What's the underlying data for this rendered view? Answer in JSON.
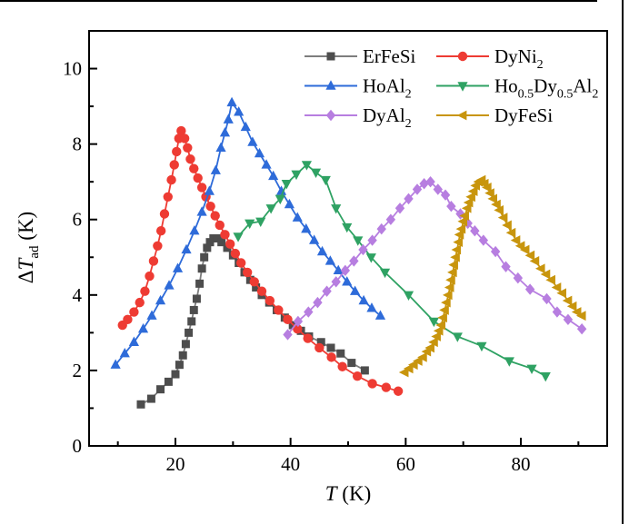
{
  "figure": {
    "background_color": "#ffffff",
    "border_color": "#000000",
    "has_top_border_line": true,
    "has_right_border_line": true
  },
  "chart_data": {
    "type": "line",
    "title": "",
    "xlabel": "T (K)",
    "ylabel": "dT_ad (K)",
    "xlabel_segments": [
      [
        "i",
        "T"
      ],
      [
        "n",
        " (K)"
      ]
    ],
    "ylabel_segments": [
      [
        "n",
        "Δ"
      ],
      [
        "i",
        "T"
      ],
      [
        "s",
        "ad"
      ],
      [
        "n",
        " (K)"
      ]
    ],
    "xlim": [
      5,
      95
    ],
    "ylim": [
      0,
      11
    ],
    "x_ticks_major": [
      20,
      40,
      60,
      80
    ],
    "x_ticks_minor": [
      10,
      30,
      50,
      70,
      90
    ],
    "y_ticks_major": [
      0,
      2,
      4,
      6,
      8,
      10
    ],
    "y_ticks_minor": [
      1,
      3,
      5,
      7,
      9
    ],
    "grid": false,
    "legend_position": "top-inside",
    "legend_columns": 2,
    "axis_color": "#000000",
    "series": [
      {
        "name": "ErFeSi",
        "label": "ErFeSi",
        "label_segments": [
          [
            "n",
            "ErFeSi"
          ]
        ],
        "marker": "square",
        "color": "#4d4d4d",
        "line_color": "#7d7d7d",
        "points": [
          [
            14,
            1.1
          ],
          [
            15.8,
            1.25
          ],
          [
            17.4,
            1.5
          ],
          [
            18.8,
            1.7
          ],
          [
            20,
            1.9
          ],
          [
            20.7,
            2.15
          ],
          [
            21.3,
            2.4
          ],
          [
            21.8,
            2.7
          ],
          [
            22.3,
            3.0
          ],
          [
            22.8,
            3.3
          ],
          [
            23.2,
            3.6
          ],
          [
            23.7,
            3.9
          ],
          [
            24.2,
            4.3
          ],
          [
            24.6,
            4.7
          ],
          [
            25,
            5.0
          ],
          [
            25.5,
            5.25
          ],
          [
            26,
            5.4
          ],
          [
            26.6,
            5.5
          ],
          [
            27.3,
            5.5
          ],
          [
            28,
            5.4
          ],
          [
            29,
            5.25
          ],
          [
            30,
            5.05
          ],
          [
            31,
            4.85
          ],
          [
            32,
            4.6
          ],
          [
            33,
            4.4
          ],
          [
            34,
            4.2
          ],
          [
            35,
            4.0
          ],
          [
            36.3,
            3.8
          ],
          [
            37.6,
            3.6
          ],
          [
            39,
            3.4
          ],
          [
            40.4,
            3.2
          ],
          [
            41.8,
            3.05
          ],
          [
            43.2,
            2.9
          ],
          [
            45.3,
            2.75
          ],
          [
            47,
            2.6
          ],
          [
            48.7,
            2.45
          ],
          [
            50.6,
            2.2
          ],
          [
            52.9,
            2.0
          ]
        ]
      },
      {
        "name": "DyNi2",
        "label": "DyNi2",
        "label_segments": [
          [
            "n",
            "DyNi"
          ],
          [
            "s",
            "2"
          ]
        ],
        "marker": "circle",
        "color": "#ee3b33",
        "line_color": "#ee3b33",
        "points": [
          [
            10.8,
            3.2
          ],
          [
            11.7,
            3.35
          ],
          [
            12.8,
            3.55
          ],
          [
            13.8,
            3.8
          ],
          [
            14.7,
            4.1
          ],
          [
            15.5,
            4.5
          ],
          [
            16.2,
            4.9
          ],
          [
            16.9,
            5.3
          ],
          [
            17.5,
            5.7
          ],
          [
            18.1,
            6.15
          ],
          [
            18.7,
            6.6
          ],
          [
            19.3,
            7.05
          ],
          [
            19.8,
            7.45
          ],
          [
            20.2,
            7.8
          ],
          [
            20.6,
            8.15
          ],
          [
            21,
            8.35
          ],
          [
            21.6,
            8.15
          ],
          [
            22.1,
            7.9
          ],
          [
            22.6,
            7.6
          ],
          [
            23.2,
            7.35
          ],
          [
            23.9,
            7.1
          ],
          [
            24.6,
            6.85
          ],
          [
            25.3,
            6.6
          ],
          [
            26.1,
            6.35
          ],
          [
            26.9,
            6.1
          ],
          [
            27.7,
            5.85
          ],
          [
            28.6,
            5.6
          ],
          [
            29.5,
            5.35
          ],
          [
            30.4,
            5.1
          ],
          [
            31.4,
            4.85
          ],
          [
            32.5,
            4.6
          ],
          [
            33.7,
            4.35
          ],
          [
            35,
            4.1
          ],
          [
            36.4,
            3.85
          ],
          [
            37.9,
            3.6
          ],
          [
            39.5,
            3.35
          ],
          [
            41.2,
            3.1
          ],
          [
            43,
            2.85
          ],
          [
            45,
            2.6
          ],
          [
            47.1,
            2.35
          ],
          [
            49,
            2.1
          ],
          [
            51.6,
            1.85
          ],
          [
            54.2,
            1.65
          ],
          [
            56.6,
            1.55
          ],
          [
            58.7,
            1.45
          ]
        ]
      },
      {
        "name": "HoAl2",
        "label": "HoAl2",
        "label_segments": [
          [
            "n",
            "HoAl"
          ],
          [
            "s",
            "2"
          ]
        ],
        "marker": "triangle-up",
        "color": "#2e6bd9",
        "line_color": "#2e6bd9",
        "points": [
          [
            9.6,
            2.15
          ],
          [
            11.2,
            2.45
          ],
          [
            12.8,
            2.75
          ],
          [
            14.4,
            3.1
          ],
          [
            15.9,
            3.45
          ],
          [
            17.4,
            3.85
          ],
          [
            18.9,
            4.25
          ],
          [
            20.4,
            4.7
          ],
          [
            21.9,
            5.2
          ],
          [
            23.3,
            5.7
          ],
          [
            24.6,
            6.2
          ],
          [
            25.9,
            6.75
          ],
          [
            27,
            7.3
          ],
          [
            27.9,
            7.9
          ],
          [
            28.6,
            8.3
          ],
          [
            29.2,
            8.65
          ],
          [
            29.8,
            9.1
          ],
          [
            31,
            8.85
          ],
          [
            32.2,
            8.45
          ],
          [
            33.4,
            8.05
          ],
          [
            34.6,
            7.75
          ],
          [
            35.8,
            7.45
          ],
          [
            37,
            7.15
          ],
          [
            38.4,
            6.75
          ],
          [
            39.8,
            6.4
          ],
          [
            41.2,
            6.05
          ],
          [
            42.7,
            5.75
          ],
          [
            44.1,
            5.45
          ],
          [
            45.5,
            5.15
          ],
          [
            46.9,
            4.9
          ],
          [
            48.3,
            4.65
          ],
          [
            49.8,
            4.35
          ],
          [
            51.2,
            4.1
          ],
          [
            52.7,
            3.85
          ],
          [
            54.1,
            3.65
          ],
          [
            55.6,
            3.45
          ]
        ]
      },
      {
        "name": "Ho0.5Dy0.5Al2",
        "label": "Ho0.5Dy0.5Al2",
        "label_segments": [
          [
            "n",
            "Ho"
          ],
          [
            "s",
            "0.5"
          ],
          [
            "n",
            "Dy"
          ],
          [
            "s",
            "0.5"
          ],
          [
            "n",
            "Al"
          ],
          [
            "s",
            "2"
          ]
        ],
        "marker": "triangle-down",
        "color": "#2fa263",
        "line_color": "#2fa263",
        "points": [
          [
            30.9,
            5.55
          ],
          [
            32.9,
            5.9
          ],
          [
            34.8,
            5.95
          ],
          [
            36.6,
            6.3
          ],
          [
            38.2,
            6.55
          ],
          [
            39.3,
            6.95
          ],
          [
            41,
            7.2
          ],
          [
            42.8,
            7.45
          ],
          [
            44.4,
            7.25
          ],
          [
            46.1,
            7.05
          ],
          [
            47.9,
            6.3
          ],
          [
            49.8,
            5.8
          ],
          [
            51.7,
            5.45
          ],
          [
            54,
            5.0
          ],
          [
            56.4,
            4.6
          ],
          [
            60.5,
            4.0
          ],
          [
            64.9,
            3.3
          ],
          [
            69,
            2.9
          ],
          [
            73.2,
            2.65
          ],
          [
            78,
            2.25
          ],
          [
            81.9,
            2.05
          ],
          [
            84.3,
            1.85
          ]
        ]
      },
      {
        "name": "DyAl2",
        "label": "DyAl2",
        "label_segments": [
          [
            "n",
            "DyAl"
          ],
          [
            "s",
            "2"
          ]
        ],
        "marker": "diamond",
        "color": "#b77ee0",
        "line_color": "#b77ee0",
        "points": [
          [
            39.5,
            2.95
          ],
          [
            41.3,
            3.3
          ],
          [
            43.1,
            3.55
          ],
          [
            44.7,
            3.8
          ],
          [
            46.3,
            4.1
          ],
          [
            47.9,
            4.35
          ],
          [
            49.5,
            4.65
          ],
          [
            51,
            4.9
          ],
          [
            52.6,
            5.2
          ],
          [
            54.2,
            5.45
          ],
          [
            55.8,
            5.75
          ],
          [
            57.4,
            6.0
          ],
          [
            59,
            6.3
          ],
          [
            60.5,
            6.55
          ],
          [
            62,
            6.8
          ],
          [
            63.2,
            6.95
          ],
          [
            64.3,
            7.0
          ],
          [
            65.6,
            6.8
          ],
          [
            66.9,
            6.65
          ],
          [
            67.9,
            6.35
          ],
          [
            69.5,
            6.15
          ],
          [
            70.8,
            5.9
          ],
          [
            72,
            5.7
          ],
          [
            73.5,
            5.45
          ],
          [
            75.6,
            5.15
          ],
          [
            77.4,
            4.75
          ],
          [
            79.5,
            4.45
          ],
          [
            81.6,
            4.15
          ],
          [
            84.5,
            3.9
          ],
          [
            86.3,
            3.55
          ],
          [
            88.2,
            3.35
          ],
          [
            90.6,
            3.1
          ]
        ]
      },
      {
        "name": "DyFeSi",
        "label": "DyFeSi",
        "label_segments": [
          [
            "n",
            "DyFeSi"
          ]
        ],
        "marker": "triangle-left",
        "color": "#c8950d",
        "line_color": "#c8950d",
        "points": [
          [
            59.8,
            1.95
          ],
          [
            60.6,
            2.05
          ],
          [
            61.4,
            2.15
          ],
          [
            62.2,
            2.25
          ],
          [
            63,
            2.35
          ],
          [
            63.7,
            2.5
          ],
          [
            64.3,
            2.6
          ],
          [
            64.9,
            2.75
          ],
          [
            65.4,
            2.9
          ],
          [
            65.8,
            3.05
          ],
          [
            66.2,
            3.2
          ],
          [
            66.5,
            3.4
          ],
          [
            66.8,
            3.6
          ],
          [
            67.1,
            3.8
          ],
          [
            67.4,
            4.0
          ],
          [
            67.7,
            4.2
          ],
          [
            67.9,
            4.4
          ],
          [
            68.2,
            4.6
          ],
          [
            68.4,
            4.8
          ],
          [
            68.7,
            5.0
          ],
          [
            68.9,
            5.2
          ],
          [
            69.2,
            5.4
          ],
          [
            69.4,
            5.6
          ],
          [
            69.7,
            5.75
          ],
          [
            70,
            5.95
          ],
          [
            70.3,
            6.1
          ],
          [
            70.7,
            6.3
          ],
          [
            71,
            6.45
          ],
          [
            71.4,
            6.6
          ],
          [
            71.8,
            6.75
          ],
          [
            72.2,
            6.9
          ],
          [
            72.7,
            7.0
          ],
          [
            73.2,
            7.05
          ],
          [
            73.7,
            6.95
          ],
          [
            74.2,
            6.85
          ],
          [
            74.7,
            6.7
          ],
          [
            75.2,
            6.55
          ],
          [
            75.8,
            6.4
          ],
          [
            76.3,
            6.25
          ],
          [
            77,
            6.05
          ],
          [
            77.7,
            5.85
          ],
          [
            78.4,
            5.65
          ],
          [
            79.2,
            5.45
          ],
          [
            80,
            5.3
          ],
          [
            80.8,
            5.2
          ],
          [
            81.7,
            5.05
          ],
          [
            82.5,
            4.9
          ],
          [
            83.5,
            4.7
          ],
          [
            84.4,
            4.55
          ],
          [
            85.3,
            4.4
          ],
          [
            86.3,
            4.2
          ],
          [
            87.2,
            4.05
          ],
          [
            88.2,
            3.85
          ],
          [
            89,
            3.7
          ],
          [
            89.8,
            3.55
          ],
          [
            90.6,
            3.45
          ]
        ]
      }
    ]
  }
}
